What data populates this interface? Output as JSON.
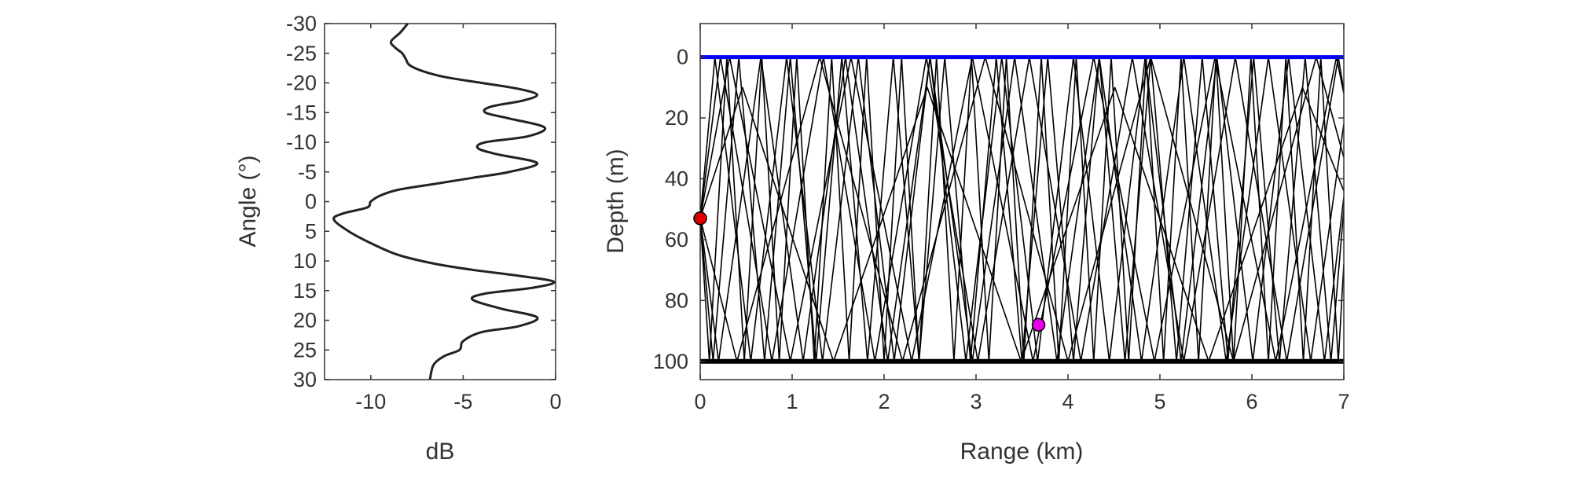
{
  "chart_data": [
    {
      "type": "line",
      "xlabel": "dB",
      "ylabel": "Angle (°)",
      "xlim": [
        -12.5,
        0
      ],
      "ylim": [
        -30,
        30
      ],
      "y_reversed": true,
      "xticks": [
        -10,
        -5,
        0
      ],
      "yticks": [
        -30,
        -25,
        -20,
        -15,
        -10,
        -5,
        0,
        5,
        10,
        15,
        20,
        25,
        30
      ],
      "color": "#222222",
      "series": [
        {
          "x": [
            -8.0,
            -8.4,
            -8.9,
            -8.7,
            -8.3,
            -8.1,
            -7.9,
            -7.2,
            -6.0,
            -4.0,
            -2.0,
            -1.0,
            -1.8,
            -3.5,
            -3.8,
            -2.5,
            -0.6,
            -1.5,
            -3.8,
            -4.2,
            -3.2,
            -1.0,
            -2.5,
            -4.5,
            -6.5,
            -8.5,
            -9.5,
            -10.0,
            -10.2,
            -11.5,
            -12.0,
            -11.2,
            -10.0,
            -8.5,
            -6.5,
            -4.5,
            -2.0,
            -0.1,
            -1.2,
            -3.8,
            -4.5,
            -3.0,
            -1.0,
            -2.0,
            -4.0,
            -5.0,
            -5.2,
            -6.0,
            -6.6,
            -6.8
          ],
          "y": [
            -30.0,
            -28.5,
            -27.0,
            -26.0,
            -25.0,
            -24.0,
            -23.0,
            -22.0,
            -21.0,
            -20.0,
            -19.0,
            -18.0,
            -17.0,
            -16.0,
            -15.0,
            -14.0,
            -12.5,
            -11.0,
            -10.0,
            -9.0,
            -8.0,
            -6.5,
            -5.0,
            -4.0,
            -3.0,
            -2.0,
            -1.0,
            0.0,
            1.0,
            2.0,
            3.0,
            5.0,
            7.0,
            9.0,
            10.5,
            11.5,
            12.5,
            13.5,
            14.5,
            15.5,
            16.5,
            18.0,
            19.5,
            21.0,
            22.0,
            23.5,
            25.0,
            26.0,
            27.5,
            30.0
          ]
        }
      ]
    },
    {
      "type": "line",
      "xlabel": "Range (km)",
      "ylabel": "Depth (m)",
      "xlim": [
        0,
        7
      ],
      "ylim": [
        -11,
        106
      ],
      "y_reversed": true,
      "xticks": [
        0,
        1,
        2,
        3,
        4,
        5,
        6,
        7
      ],
      "yticks": [
        0,
        20,
        40,
        60,
        80,
        100
      ],
      "surface": {
        "depth": 0,
        "color": "#0000ff"
      },
      "bottom": {
        "depth": 100,
        "color": "#000000"
      },
      "ray_color": "#000000",
      "source": {
        "range": 0,
        "depth": 53,
        "color": "#dd0000"
      },
      "receiver": {
        "range": 3.68,
        "depth": 88,
        "color": "#e600e6"
      },
      "rays": [
        {
          "points": [
            [
              0,
              53
            ],
            [
              0.16,
              0
            ],
            [
              0.55,
              100
            ],
            [
              0.94,
              0
            ],
            [
              1.33,
              100
            ],
            [
              1.72,
              0
            ],
            [
              2.11,
              100
            ],
            [
              2.5,
              0
            ],
            [
              2.89,
              100
            ],
            [
              3.28,
              0
            ],
            [
              3.67,
              100
            ],
            [
              4.06,
              0
            ],
            [
              4.45,
              100
            ],
            [
              4.84,
              0
            ],
            [
              5.23,
              100
            ],
            [
              5.62,
              0
            ],
            [
              6.01,
              100
            ],
            [
              6.4,
              0
            ],
            [
              6.79,
              100
            ],
            [
              7.0,
              46
            ]
          ]
        },
        {
          "points": [
            [
              0,
              53
            ],
            [
              0.1,
              100
            ],
            [
              0.29,
              0
            ],
            [
              0.48,
              100
            ],
            [
              0.67,
              0
            ],
            [
              0.86,
              100
            ],
            [
              1.05,
              0
            ],
            [
              1.24,
              100
            ],
            [
              1.43,
              0
            ],
            [
              1.62,
              100
            ],
            [
              1.81,
              0
            ],
            [
              2.0,
              100
            ],
            [
              2.19,
              0
            ],
            [
              2.38,
              100
            ],
            [
              2.57,
              0
            ],
            [
              2.76,
              100
            ],
            [
              2.95,
              0
            ],
            [
              3.14,
              100
            ],
            [
              3.33,
              0
            ],
            [
              3.52,
              100
            ],
            [
              3.71,
              0
            ],
            [
              3.9,
              100
            ],
            [
              4.09,
              0
            ],
            [
              4.28,
              100
            ],
            [
              4.47,
              0
            ],
            [
              4.66,
              100
            ],
            [
              4.85,
              0
            ],
            [
              5.04,
              100
            ],
            [
              5.23,
              0
            ],
            [
              5.42,
              100
            ],
            [
              5.61,
              0
            ],
            [
              5.8,
              100
            ],
            [
              5.99,
              0
            ],
            [
              6.18,
              100
            ],
            [
              6.37,
              0
            ],
            [
              6.56,
              100
            ],
            [
              6.75,
              0
            ],
            [
              6.94,
              100
            ],
            [
              7.0,
              68
            ]
          ]
        },
        {
          "points": [
            [
              0,
              53
            ],
            [
              0.32,
              0
            ],
            [
              0.98,
              100
            ],
            [
              1.64,
              0
            ],
            [
              2.3,
              100
            ],
            [
              2.96,
              0
            ],
            [
              3.62,
              100
            ],
            [
              4.28,
              0
            ],
            [
              4.94,
              100
            ],
            [
              5.6,
              0
            ],
            [
              6.26,
              100
            ],
            [
              6.92,
              0
            ],
            [
              7.0,
              12
            ]
          ]
        },
        {
          "points": [
            [
              0,
              53
            ],
            [
              0.2,
              100
            ],
            [
              0.66,
              0
            ],
            [
              1.12,
              100
            ],
            [
              1.58,
              0
            ],
            [
              2.04,
              100
            ],
            [
              2.5,
              0
            ],
            [
              2.96,
              100
            ],
            [
              3.42,
              0
            ],
            [
              3.88,
              100
            ],
            [
              4.34,
              0
            ],
            [
              4.8,
              100
            ],
            [
              5.26,
              0
            ],
            [
              5.72,
              100
            ],
            [
              6.18,
              0
            ],
            [
              6.64,
              100
            ],
            [
              7.0,
              22
            ]
          ]
        },
        {
          "points": [
            [
              0,
              53
            ],
            [
              0.22,
              0
            ],
            [
              0.78,
              100
            ],
            [
              1.34,
              0
            ],
            [
              1.9,
              100
            ],
            [
              2.46,
              0
            ],
            [
              3.02,
              100
            ],
            [
              3.58,
              0
            ],
            [
              4.14,
              100
            ],
            [
              4.7,
              0
            ],
            [
              5.26,
              100
            ],
            [
              5.82,
              0
            ],
            [
              6.38,
              100
            ],
            [
              6.94,
              0
            ],
            [
              7.0,
              11
            ]
          ]
        },
        {
          "points": [
            [
              0,
              53
            ],
            [
              0.14,
              100
            ],
            [
              0.42,
              0
            ],
            [
              0.7,
              100
            ],
            [
              0.98,
              0
            ],
            [
              1.26,
              100
            ],
            [
              1.54,
              0
            ],
            [
              1.82,
              100
            ],
            [
              2.1,
              0
            ],
            [
              2.38,
              100
            ],
            [
              2.66,
              0
            ],
            [
              2.94,
              100
            ],
            [
              3.22,
              0
            ],
            [
              3.5,
              100
            ],
            [
              3.78,
              0
            ],
            [
              4.06,
              100
            ],
            [
              4.34,
              0
            ],
            [
              4.62,
              100
            ],
            [
              4.9,
              0
            ],
            [
              5.18,
              100
            ],
            [
              5.46,
              0
            ],
            [
              5.74,
              100
            ],
            [
              6.02,
              0
            ],
            [
              6.3,
              100
            ],
            [
              6.58,
              0
            ],
            [
              6.86,
              100
            ],
            [
              7.0,
              50
            ]
          ]
        },
        {
          "points": [
            [
              0,
              53
            ],
            [
              0.46,
              10
            ],
            [
              1.45,
              100
            ],
            [
              2.47,
              10
            ],
            [
              3.49,
              100
            ],
            [
              4.51,
              10
            ],
            [
              5.53,
              100
            ],
            [
              6.55,
              10
            ],
            [
              7.0,
              44
            ]
          ]
        },
        {
          "points": [
            [
              0,
              53
            ],
            [
              0.4,
              100
            ],
            [
              1.3,
              0
            ],
            [
              2.2,
              100
            ],
            [
              3.1,
              0
            ],
            [
              4.0,
              100
            ],
            [
              4.9,
              0
            ],
            [
              5.8,
              100
            ],
            [
              6.7,
              0
            ],
            [
              7.0,
              33
            ]
          ]
        }
      ]
    }
  ]
}
